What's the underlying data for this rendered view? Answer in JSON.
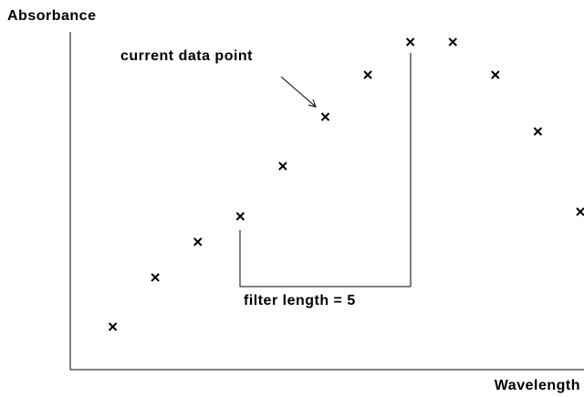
{
  "chart_data": {
    "type": "scatter",
    "ylabel": "Absorbance",
    "xlabel": "Wavelength",
    "annotations": [
      "current data point",
      "filter length = 5"
    ],
    "x": [
      1,
      2,
      3,
      4,
      5,
      6,
      7,
      8,
      9,
      10,
      11,
      12
    ],
    "values": [
      4.7,
      10.1,
      14,
      16.8,
      22.3,
      27.7,
      32.3,
      35.9,
      35.9,
      32.3,
      26.1,
      17.3
    ],
    "color": "#000000",
    "xlim": [
      0,
      12
    ],
    "ylim": [
      0,
      37
    ]
  }
}
